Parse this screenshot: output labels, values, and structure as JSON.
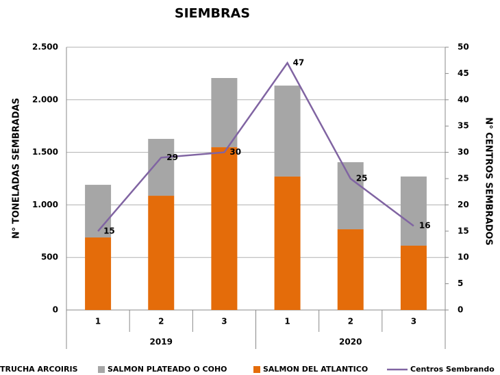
{
  "chart_data": {
    "type": "bar",
    "title": "SIEMBRAS",
    "y_label": "N° TONELADAS SEMBRADAS",
    "y2_label": "N° CENTROS SEMBRADOS",
    "categories": [
      "1",
      "2",
      "3",
      "1",
      "2",
      "3"
    ],
    "groups": [
      "2019",
      "2020"
    ],
    "stacked": true,
    "series": [
      {
        "name": "TRUCHA ARCOIRIS",
        "color": "#1f3864",
        "values": [
          0,
          0,
          0,
          0,
          0,
          0
        ]
      },
      {
        "name": "SALMON DEL ATLANTICO",
        "color": "#e46c0a",
        "values": [
          690,
          1087,
          1549,
          1270,
          768,
          612
        ]
      },
      {
        "name": "SALMON PLATEADO O COHO",
        "color": "#a6a6a6",
        "values": [
          501,
          541,
          658,
          865,
          638,
          658
        ]
      },
      {
        "name": "Centros Sembrando",
        "color": "#8064a2",
        "type": "line",
        "axis": "y2",
        "values": [
          15,
          29,
          30,
          47,
          25,
          16
        ]
      }
    ],
    "legend_order": [
      0,
      2,
      1,
      3
    ],
    "ylim": [
      0,
      2500
    ],
    "yticks": [
      0,
      500,
      {
        "value": 1000,
        "label": "1.000"
      },
      {
        "value": 1500,
        "label": "1.500"
      },
      {
        "value": 2000,
        "label": "2.000"
      },
      {
        "value": 2500,
        "label": "2.500"
      }
    ],
    "y2lim": [
      0,
      50
    ],
    "y2ticks": [
      0,
      5,
      10,
      15,
      20,
      25,
      30,
      35,
      40,
      45,
      50
    ],
    "grid": true,
    "legend": "bottom"
  }
}
